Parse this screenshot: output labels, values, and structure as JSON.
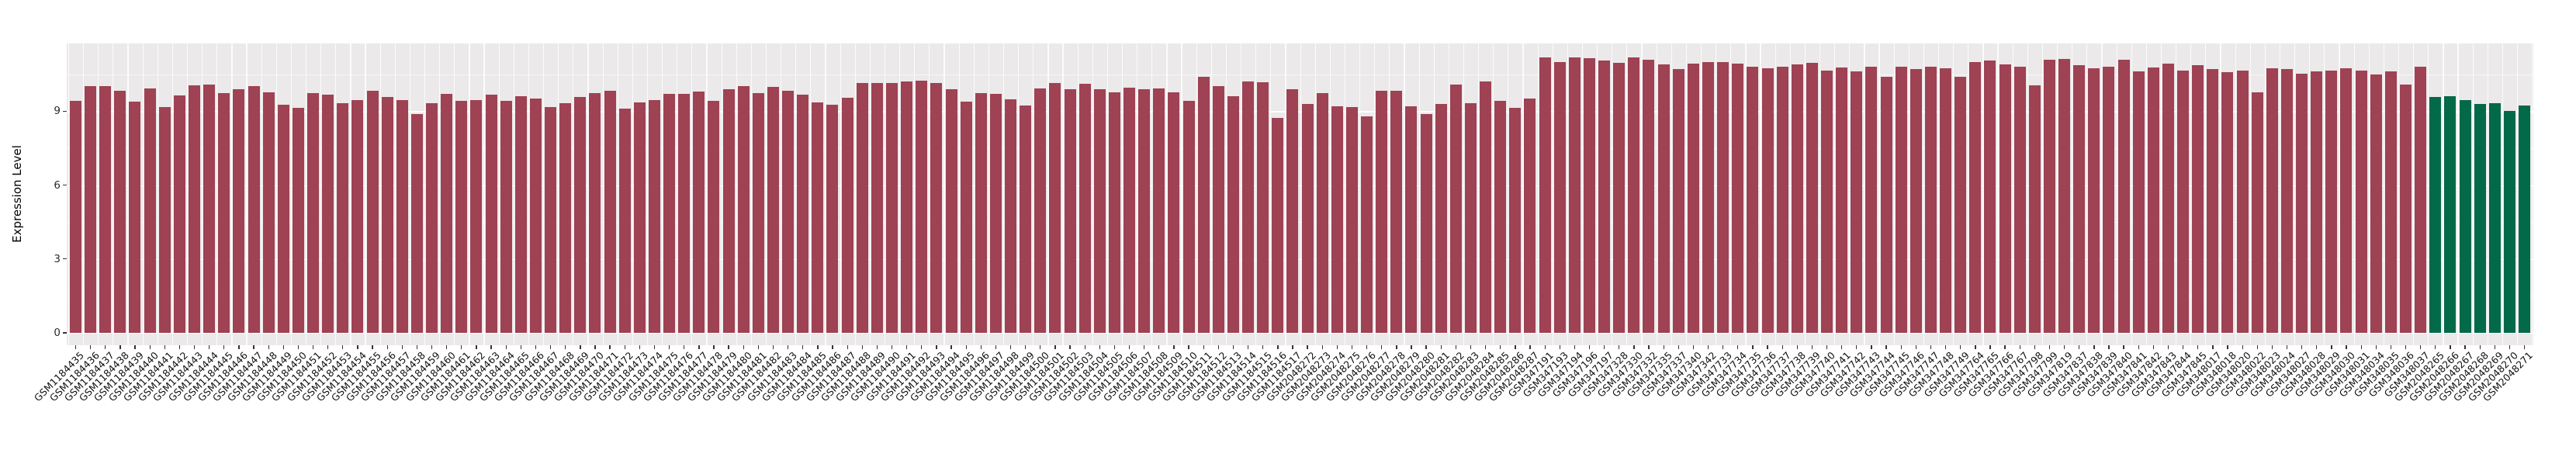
{
  "chart_data": {
    "type": "bar",
    "title": "",
    "xlabel": "",
    "ylabel": "Expression Level",
    "yticks": [
      0,
      3,
      6,
      9
    ],
    "yticks_minor": [
      1.5,
      4.5,
      7.5,
      10.5
    ],
    "ylim": [
      -0.5,
      11.75
    ],
    "grid": true,
    "legend": "none",
    "colors": {
      "bar_default": "#9E4254",
      "bar_highlight": "#026949",
      "panel_bg": "#EBE9E9",
      "grid": "#FFFFFF",
      "tick": "#333333"
    },
    "highlight_categories": [
      "GSM2048265",
      "GSM2048266",
      "GSM2048267",
      "GSM2048268",
      "GSM2048269",
      "GSM2048270",
      "GSM2048271"
    ],
    "categories": [
      "GSM1184435",
      "GSM1184436",
      "GSM1184437",
      "GSM1184438",
      "GSM1184439",
      "GSM1184440",
      "GSM1184441",
      "GSM1184442",
      "GSM1184443",
      "GSM1184444",
      "GSM1184445",
      "GSM1184446",
      "GSM1184447",
      "GSM1184448",
      "GSM1184449",
      "GSM1184450",
      "GSM1184451",
      "GSM1184452",
      "GSM1184453",
      "GSM1184454",
      "GSM1184455",
      "GSM1184456",
      "GSM1184457",
      "GSM1184458",
      "GSM1184459",
      "GSM1184460",
      "GSM1184461",
      "GSM1184462",
      "GSM1184463",
      "GSM1184464",
      "GSM1184465",
      "GSM1184466",
      "GSM1184467",
      "GSM1184468",
      "GSM1184469",
      "GSM1184470",
      "GSM1184471",
      "GSM1184472",
      "GSM1184473",
      "GSM1184474",
      "GSM1184475",
      "GSM1184476",
      "GSM1184477",
      "GSM1184478",
      "GSM1184479",
      "GSM1184480",
      "GSM1184481",
      "GSM1184482",
      "GSM1184483",
      "GSM1184484",
      "GSM1184485",
      "GSM1184486",
      "GSM1184487",
      "GSM1184488",
      "GSM1184489",
      "GSM1184490",
      "GSM1184491",
      "GSM1184492",
      "GSM1184493",
      "GSM1184494",
      "GSM1184495",
      "GSM1184496",
      "GSM1184497",
      "GSM1184498",
      "GSM1184499",
      "GSM1184500",
      "GSM1184501",
      "GSM1184502",
      "GSM1184503",
      "GSM1184504",
      "GSM1184505",
      "GSM1184506",
      "GSM1184507",
      "GSM1184508",
      "GSM1184509",
      "GSM1184510",
      "GSM1184511",
      "GSM1184512",
      "GSM1184513",
      "GSM1184514",
      "GSM1184515",
      "GSM1184516",
      "GSM1184517",
      "GSM2048272",
      "GSM2048273",
      "GSM2048274",
      "GSM2048275",
      "GSM2048276",
      "GSM2048277",
      "GSM2048278",
      "GSM2048279",
      "GSM2048280",
      "GSM2048281",
      "GSM2048282",
      "GSM2048283",
      "GSM2048284",
      "GSM2048285",
      "GSM2048286",
      "GSM2048287",
      "GSM347191",
      "GSM347193",
      "GSM347194",
      "GSM347196",
      "GSM347197",
      "GSM347328",
      "GSM347330",
      "GSM347332",
      "GSM347335",
      "GSM347337",
      "GSM347340",
      "GSM347342",
      "GSM347733",
      "GSM347734",
      "GSM347735",
      "GSM347736",
      "GSM347737",
      "GSM347738",
      "GSM347739",
      "GSM347740",
      "GSM347741",
      "GSM347742",
      "GSM347743",
      "GSM347744",
      "GSM347745",
      "GSM347746",
      "GSM347747",
      "GSM347748",
      "GSM347749",
      "GSM347764",
      "GSM347765",
      "GSM347766",
      "GSM347767",
      "GSM347798",
      "GSM347799",
      "GSM347819",
      "GSM347837",
      "GSM347838",
      "GSM347839",
      "GSM347840",
      "GSM347841",
      "GSM347842",
      "GSM347843",
      "GSM347844",
      "GSM347845",
      "GSM348017",
      "GSM348018",
      "GSM348020",
      "GSM348022",
      "GSM348023",
      "GSM348024",
      "GSM348027",
      "GSM348028",
      "GSM348029",
      "GSM348030",
      "GSM348031",
      "GSM348034",
      "GSM348035",
      "GSM348036",
      "GSM348037",
      "GSM2048265",
      "GSM2048266",
      "GSM2048267",
      "GSM2048268",
      "GSM2048269",
      "GSM2048270",
      "GSM2048271"
    ],
    "values": [
      9.43,
      10.03,
      10.01,
      9.83,
      9.38,
      9.92,
      9.17,
      9.64,
      10.04,
      10.08,
      9.72,
      9.89,
      10.01,
      9.77,
      9.27,
      9.15,
      9.74,
      9.66,
      9.33,
      9.46,
      9.83,
      9.59,
      9.46,
      8.9,
      9.33,
      9.69,
      9.41,
      9.46,
      9.67,
      9.41,
      9.61,
      9.51,
      9.17,
      9.33,
      9.57,
      9.72,
      9.83,
      9.11,
      9.35,
      9.46,
      9.7,
      9.69,
      9.79,
      9.43,
      9.9,
      10.03,
      9.74,
      10.0,
      9.83,
      9.67,
      9.35,
      9.27,
      9.56,
      10.14,
      10.16,
      10.15,
      10.2,
      10.23,
      10.14,
      9.9,
      9.38,
      9.74,
      9.69,
      9.48,
      9.24,
      9.92,
      10.14,
      9.9,
      10.11,
      9.9,
      9.77,
      9.97,
      9.88,
      9.94,
      9.77,
      9.43,
      10.41,
      10.01,
      9.61,
      10.2,
      10.17,
      8.72,
      9.88,
      9.29,
      9.74,
      9.2,
      9.17,
      8.78,
      9.83,
      9.83,
      9.2,
      8.9,
      9.31,
      10.09,
      9.33,
      10.2,
      9.41,
      9.15,
      9.51,
      11.2,
      11.0,
      11.17,
      11.15,
      11.06,
      10.96,
      11.18,
      11.09,
      10.91,
      10.72,
      10.93,
      11.01,
      10.98,
      10.93,
      10.8,
      10.75,
      10.82,
      10.9,
      10.96,
      10.64,
      10.78,
      10.61,
      10.8,
      10.41,
      10.8,
      10.72,
      10.82,
      10.75,
      10.41,
      10.98,
      11.06,
      10.9,
      10.82,
      10.06,
      11.08,
      11.11,
      10.87,
      10.75,
      10.8,
      11.08,
      10.61,
      10.78,
      10.92,
      10.64,
      10.88,
      10.72,
      10.59,
      10.64,
      9.78,
      10.73,
      10.72,
      10.53,
      10.63,
      10.66,
      10.74,
      10.66,
      10.49,
      10.63,
      10.09,
      10.8,
      9.57,
      9.61,
      9.46,
      9.31,
      9.33,
      9.01,
      9.22
    ]
  }
}
